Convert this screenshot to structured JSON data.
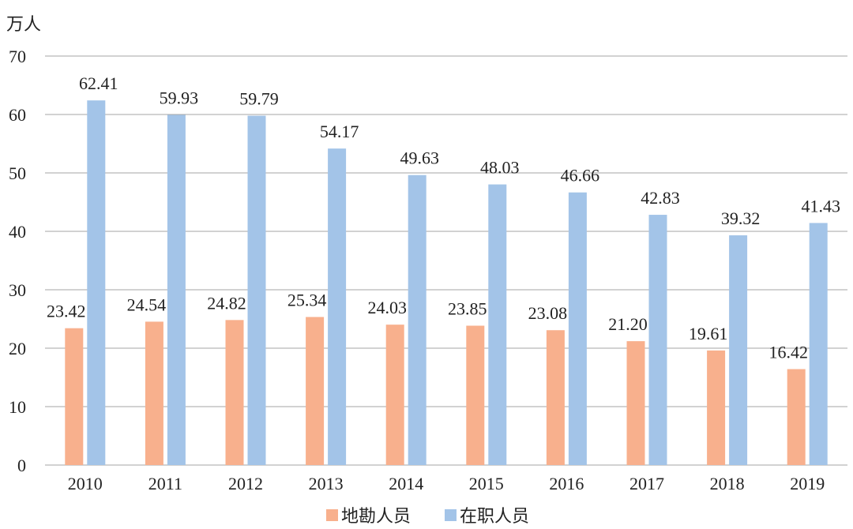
{
  "chart_data": {
    "type": "bar",
    "y_unit_label": "万人",
    "categories": [
      "2010",
      "2011",
      "2012",
      "2013",
      "2014",
      "2015",
      "2016",
      "2017",
      "2018",
      "2019"
    ],
    "series": [
      {
        "name": "地勘人员",
        "color": "#f8b08d",
        "values": [
          23.42,
          24.54,
          24.82,
          25.34,
          24.03,
          23.85,
          23.08,
          21.2,
          19.61,
          16.42
        ],
        "labels": [
          "23.42",
          "24.54",
          "24.82",
          "25.34",
          "24.03",
          "23.85",
          "23.08",
          "21.20",
          "19.61",
          "16.42"
        ]
      },
      {
        "name": "在职人员",
        "color": "#a3c4e8",
        "values": [
          62.41,
          59.93,
          59.79,
          54.17,
          49.63,
          48.03,
          46.66,
          42.83,
          39.32,
          41.43
        ],
        "labels": [
          "62.41",
          "59.93",
          "59.79",
          "54.17",
          "49.63",
          "48.03",
          "46.66",
          "42.83",
          "39.32",
          "41.43"
        ]
      }
    ],
    "ylim": [
      0,
      70
    ],
    "yticks": [
      "0",
      "10",
      "20",
      "30",
      "40",
      "50",
      "60",
      "70"
    ],
    "grid": true,
    "legend_position": "bottom-center"
  }
}
